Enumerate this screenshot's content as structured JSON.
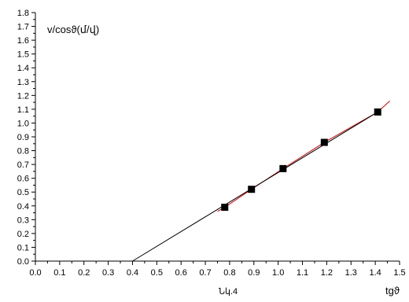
{
  "chart_data": {
    "type": "scatter",
    "ylabel": "v/cosϑ(մ/վ)",
    "xlabel": "tgϑ",
    "caption": "Նկ.4",
    "xlim": [
      0.0,
      1.5
    ],
    "ylim": [
      0.0,
      1.8
    ],
    "x_ticks": [
      "0.0",
      "0.1",
      "0.2",
      "0.3",
      "0.4",
      "0.5",
      "0.6",
      "0.7",
      "0.8",
      "0.9",
      "1.0",
      "1.1",
      "1.2",
      "1.3",
      "1.4",
      "1.5"
    ],
    "y_ticks": [
      "0.0",
      "0.1",
      "0.2",
      "0.3",
      "0.4",
      "0.5",
      "0.6",
      "0.7",
      "0.8",
      "0.9",
      "1.0",
      "1.1",
      "1.2",
      "1.3",
      "1.4",
      "1.5",
      "1.6",
      "1.7",
      "1.8"
    ],
    "grid": false,
    "series": [
      {
        "kind": "points",
        "marker": "square",
        "color": "#000000",
        "x": [
          0.78,
          0.89,
          1.02,
          1.19,
          1.41
        ],
        "y": [
          0.39,
          0.52,
          0.67,
          0.86,
          1.08
        ]
      },
      {
        "kind": "line",
        "color": "#cc0000",
        "x": [
          0.75,
          0.78,
          0.89,
          1.02,
          1.19,
          1.41,
          1.46
        ],
        "y": [
          0.36,
          0.39,
          0.52,
          0.67,
          0.86,
          1.08,
          1.16
        ]
      },
      {
        "kind": "line",
        "color": "#000000",
        "x": [
          0.4,
          1.41
        ],
        "y": [
          0.0,
          1.08
        ]
      }
    ]
  }
}
